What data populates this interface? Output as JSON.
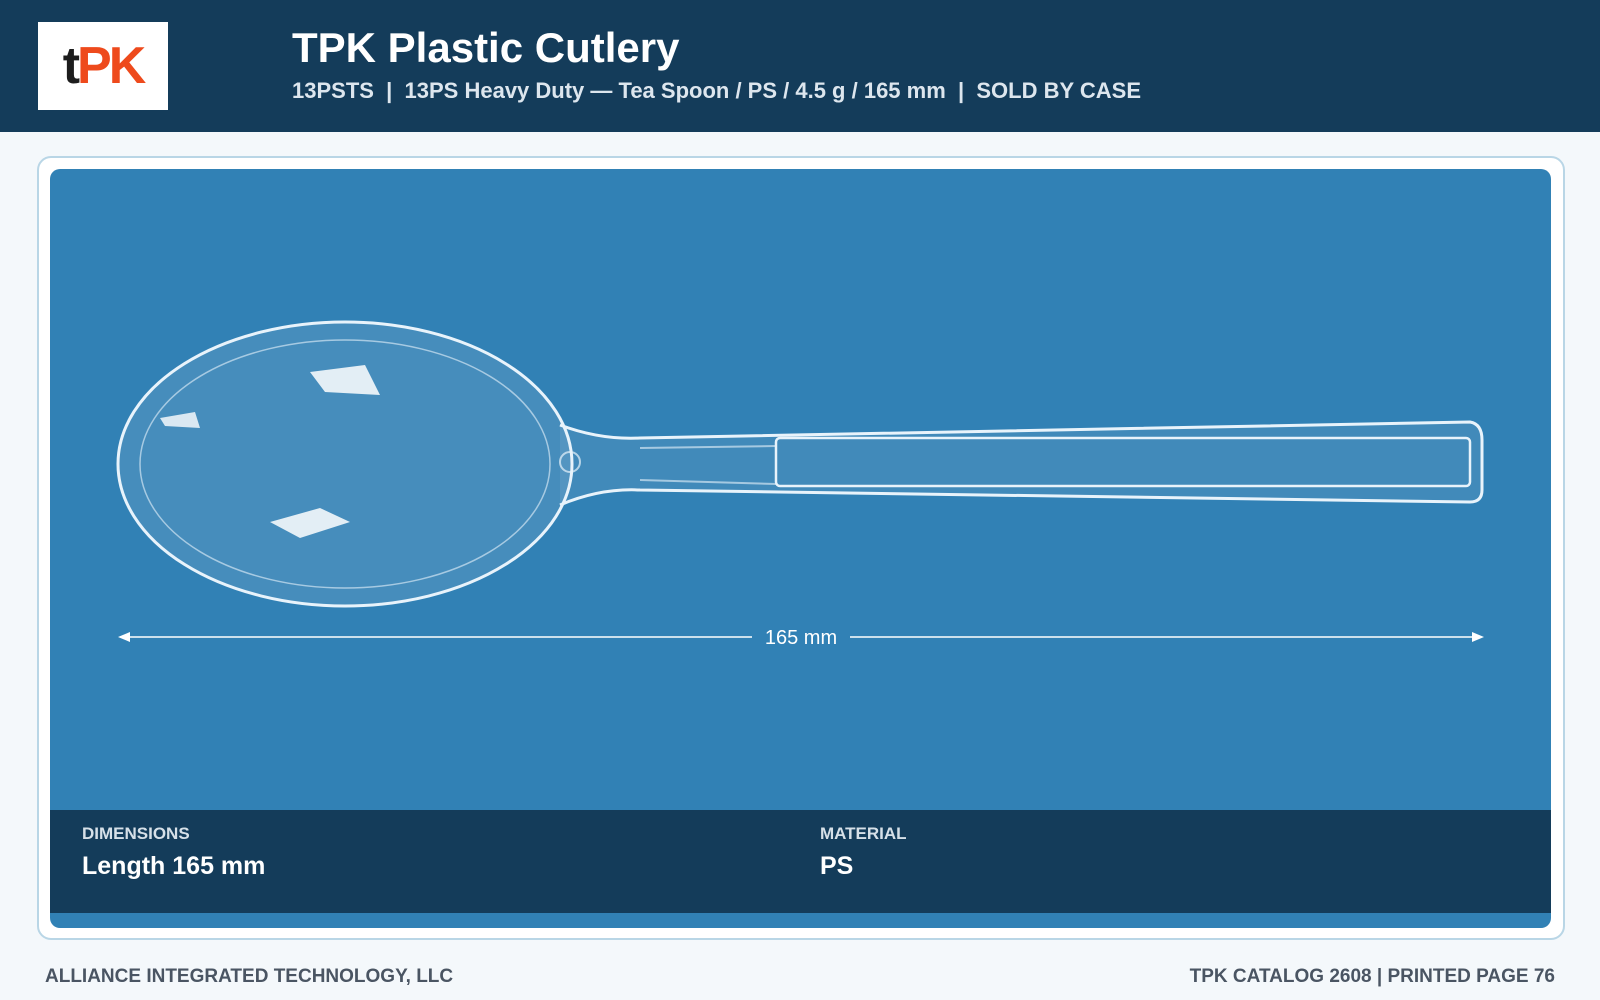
{
  "header": {
    "logo": [
      "t",
      "PK"
    ],
    "title": "TPK Plastic Cutlery",
    "subtitle": "13PSTS  |  13PS Heavy Duty — Tea Spoon / PS / 4.5 g / 165 mm  |  SOLD BY CASE"
  },
  "image": {
    "dimension_label": "165 mm"
  },
  "specs": [
    {
      "label": "DIMENSIONS",
      "value": "Length 165 mm"
    },
    {
      "label": "MATERIAL",
      "value": "PS"
    }
  ],
  "footer": {
    "left": "ALLIANCE INTEGRATED TECHNOLOGY, LLC",
    "right": "TPK CATALOG 2608 | PRINTED PAGE 76"
  }
}
